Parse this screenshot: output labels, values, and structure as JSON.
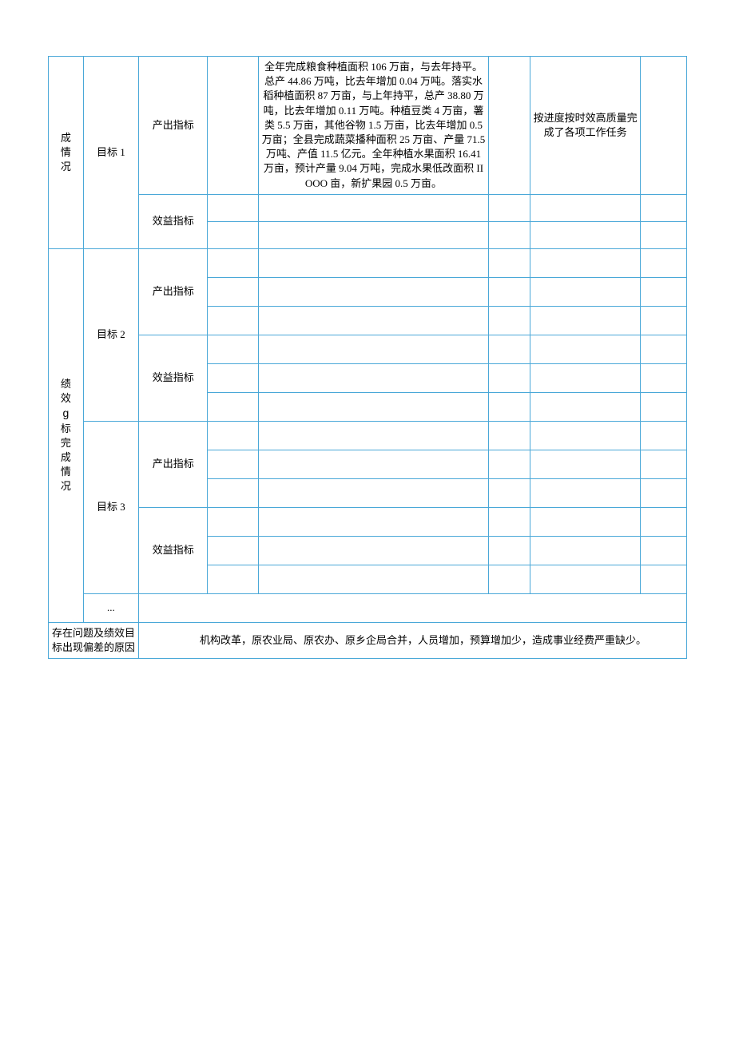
{
  "section1": {
    "left_label": "成情况",
    "target_label": "目标 1",
    "output_indicator": "产出指标",
    "benefit_indicator": "效益指标",
    "detail_text": "全年完成粮食种植面积 106 万亩，与去年持平。总产 44.86 万吨，比去年增加 0.04 万吨。落实水稻种植面积 87 万亩，与上年持平，总产 38.80 万吨，比去年增加 0.11 万吨。种植豆类 4 万亩，薯类 5.5 万亩，其他谷物 1.5 万亩，比去年增加 0.5 万亩；全县完成蔬菜播种面积 25 万亩、产量 71.5 万吨、产值 11.5 亿元。全年种植水果面积 16.41 万亩，预计产量 9.04 万吨，完成水果低改面积 IIOOO 亩，新扩果园 0.5 万亩。",
    "result_text": "按进度按时效高质量完成了各项工作任务"
  },
  "section2": {
    "left_label_1": "绩效",
    "left_label_g": "g",
    "left_label_2": "标完成情况",
    "target2": "目标 2",
    "target3": "目标 3",
    "dots": "...",
    "output_indicator": "产出指标",
    "benefit_indicator": "效益指标"
  },
  "issue": {
    "label": "存在问题及绩效目标出现偏差的原因",
    "body": "机构改革，原农业局、原农办、原乡企局合并，人员增加，预算增加少，造成事业经费严重缺少。"
  },
  "colors": {
    "border": "#4aa8d8",
    "background": "#ffffff",
    "text": "#000000"
  }
}
